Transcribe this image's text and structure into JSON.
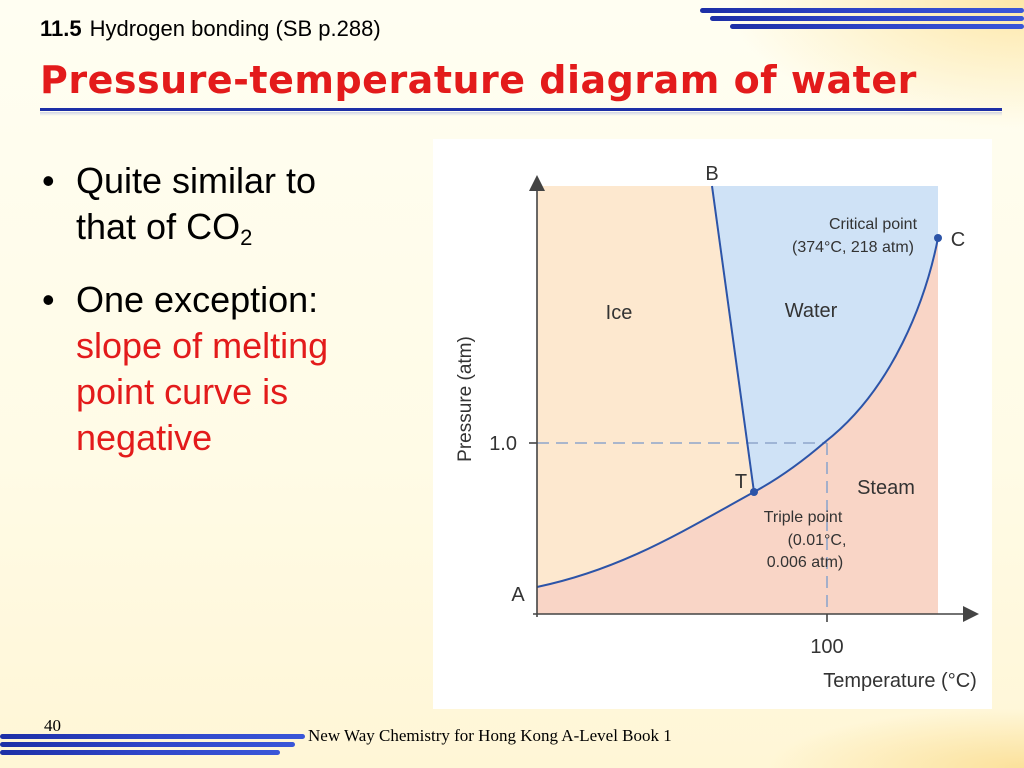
{
  "header": {
    "section_num": "11.5",
    "section_title": "Hydrogen bonding (SB p.288)"
  },
  "title": "Pressure-temperature diagram of water",
  "bullets": {
    "b1_line1": "Quite similar to",
    "b1_line2": "that of CO",
    "b1_sub": "2",
    "b2_line1": "One exception:",
    "b2_red1": "slope of melting",
    "b2_red2": "point curve is",
    "b2_red3": "negative",
    "marker": "•"
  },
  "diagram": {
    "y_axis_label": "Pressure (atm)",
    "x_axis_label": "Temperature (°C)",
    "y_tick": "1.0",
    "x_tick": "100",
    "regions": {
      "ice": "Ice",
      "water": "Water",
      "steam": "Steam"
    },
    "points": {
      "A": "A",
      "B": "B",
      "C": "C",
      "T": "T"
    },
    "critical_label1": "Critical point",
    "critical_label2": "(374°C, 218 atm)",
    "triple_label1": "Triple point",
    "triple_label2": "(0.01°C,",
    "triple_label3": "0.006 atm)",
    "colors": {
      "ice": "#fde8cf",
      "water": "#cfe2f6",
      "steam": "#f9d5c6",
      "curve": "#2c54a8",
      "dashed": "#8fa6cc"
    }
  },
  "footer": {
    "page_number": "40",
    "book": "New Way Chemistry for Hong Kong A-Level Book 1"
  },
  "theme": {
    "title_red": "#e31b1b",
    "accent_blue": "#1d2fa6"
  }
}
